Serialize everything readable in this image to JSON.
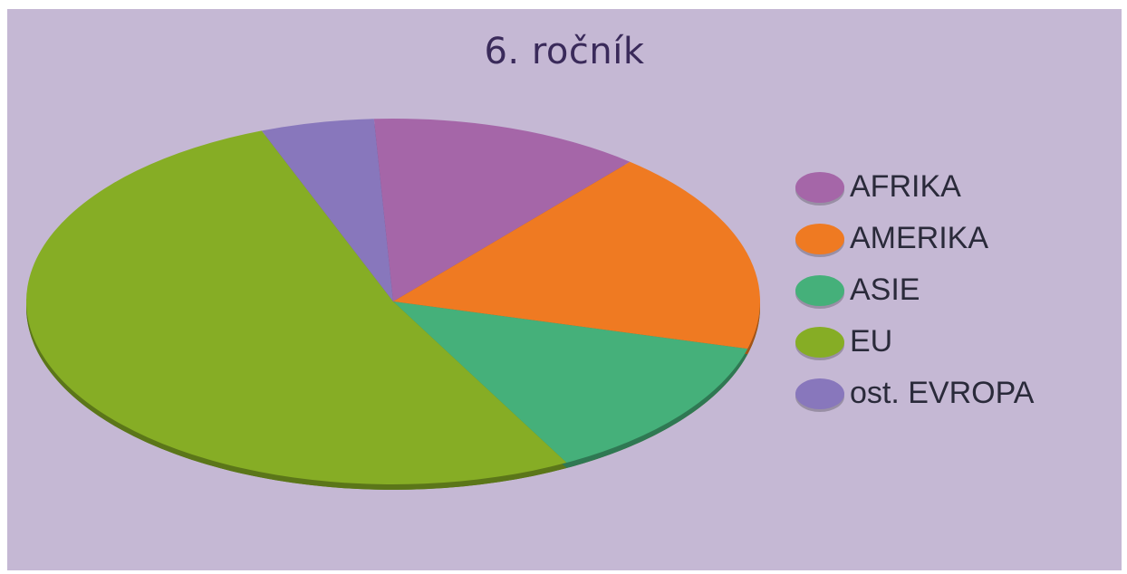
{
  "chart_data": {
    "type": "pie",
    "title": "6. ročník",
    "categories": [
      "AFRIKA",
      "AMERIKA",
      "ASIE",
      "EU",
      "ost. EVROPA"
    ],
    "values": [
      12,
      18,
      13,
      52,
      5
    ],
    "colors": [
      "#a566a8",
      "#ef7a22",
      "#45b07a",
      "#86ad25",
      "#8877bc"
    ],
    "legend": "right",
    "style": "3d-ellipse"
  }
}
